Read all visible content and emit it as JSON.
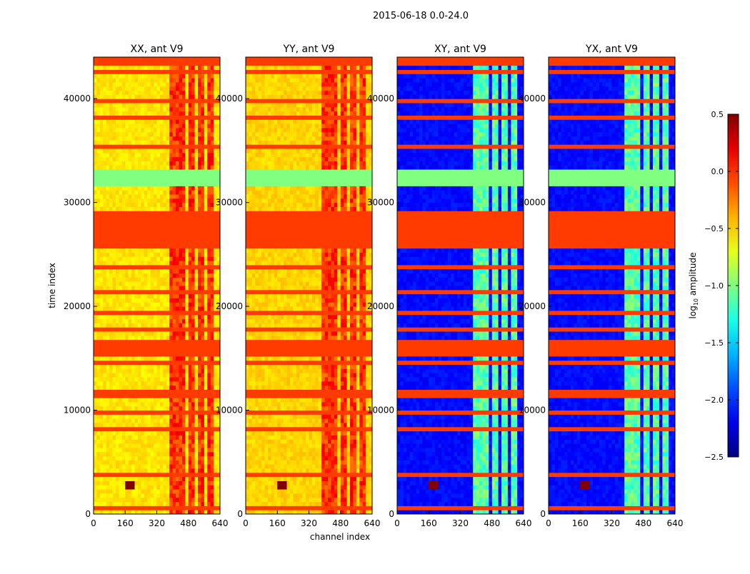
{
  "chart_data": {
    "type": "heatmap",
    "title": "2015-06-18 0.0-24.0",
    "xlabel": "channel index",
    "ylabel": "time index",
    "xlim": [
      0,
      640
    ],
    "ylim": [
      0,
      44000
    ],
    "xticks": [
      "0",
      "160",
      "320",
      "480",
      "640"
    ],
    "yticks": [
      "0",
      "10000",
      "20000",
      "30000",
      "40000"
    ],
    "colorbar": {
      "label_main": "log",
      "label_sub": "10",
      "label_tail": " amplitude",
      "range": [
        -2.5,
        0.5
      ],
      "ticks": [
        "0.5",
        "0.0",
        "−0.5",
        "−1.0",
        "−1.5",
        "−2.0",
        "−2.5"
      ],
      "colormap": "jet"
    },
    "panels": [
      {
        "title": "XX, ant V9",
        "background": -0.55,
        "band_value": -0.1,
        "flag_value": -0.05,
        "gap_value": -1.0,
        "show_ylabel": true
      },
      {
        "title": "YY, ant V9",
        "background": -0.5,
        "band_value": -0.1,
        "flag_value": -0.05,
        "gap_value": -1.0,
        "show_ylabel": false
      },
      {
        "title": "XY, ant V9",
        "background": -2.1,
        "band_value": -1.2,
        "flag_value": -0.05,
        "gap_value": -1.0,
        "show_ylabel": false
      },
      {
        "title": "YX, ant V9",
        "background": -2.1,
        "band_value": -1.2,
        "flag_value": -0.05,
        "gap_value": -1.0,
        "show_ylabel": false
      }
    ],
    "bright_channel_ranges": [
      [
        385,
        425
      ],
      [
        440,
        470
      ],
      [
        485,
        515
      ],
      [
        530,
        560
      ],
      [
        570,
        600
      ]
    ],
    "flagged_time_ranges": [
      [
        31500,
        33200
      ],
      [
        41500,
        44000
      ],
      [
        23400,
        24200
      ],
      [
        3700,
        4100
      ],
      [
        14000,
        17800
      ],
      [
        26000,
        28600
      ]
    ],
    "rfi_feature": {
      "channel": 190,
      "time": 2900,
      "value": 0.5
    }
  }
}
